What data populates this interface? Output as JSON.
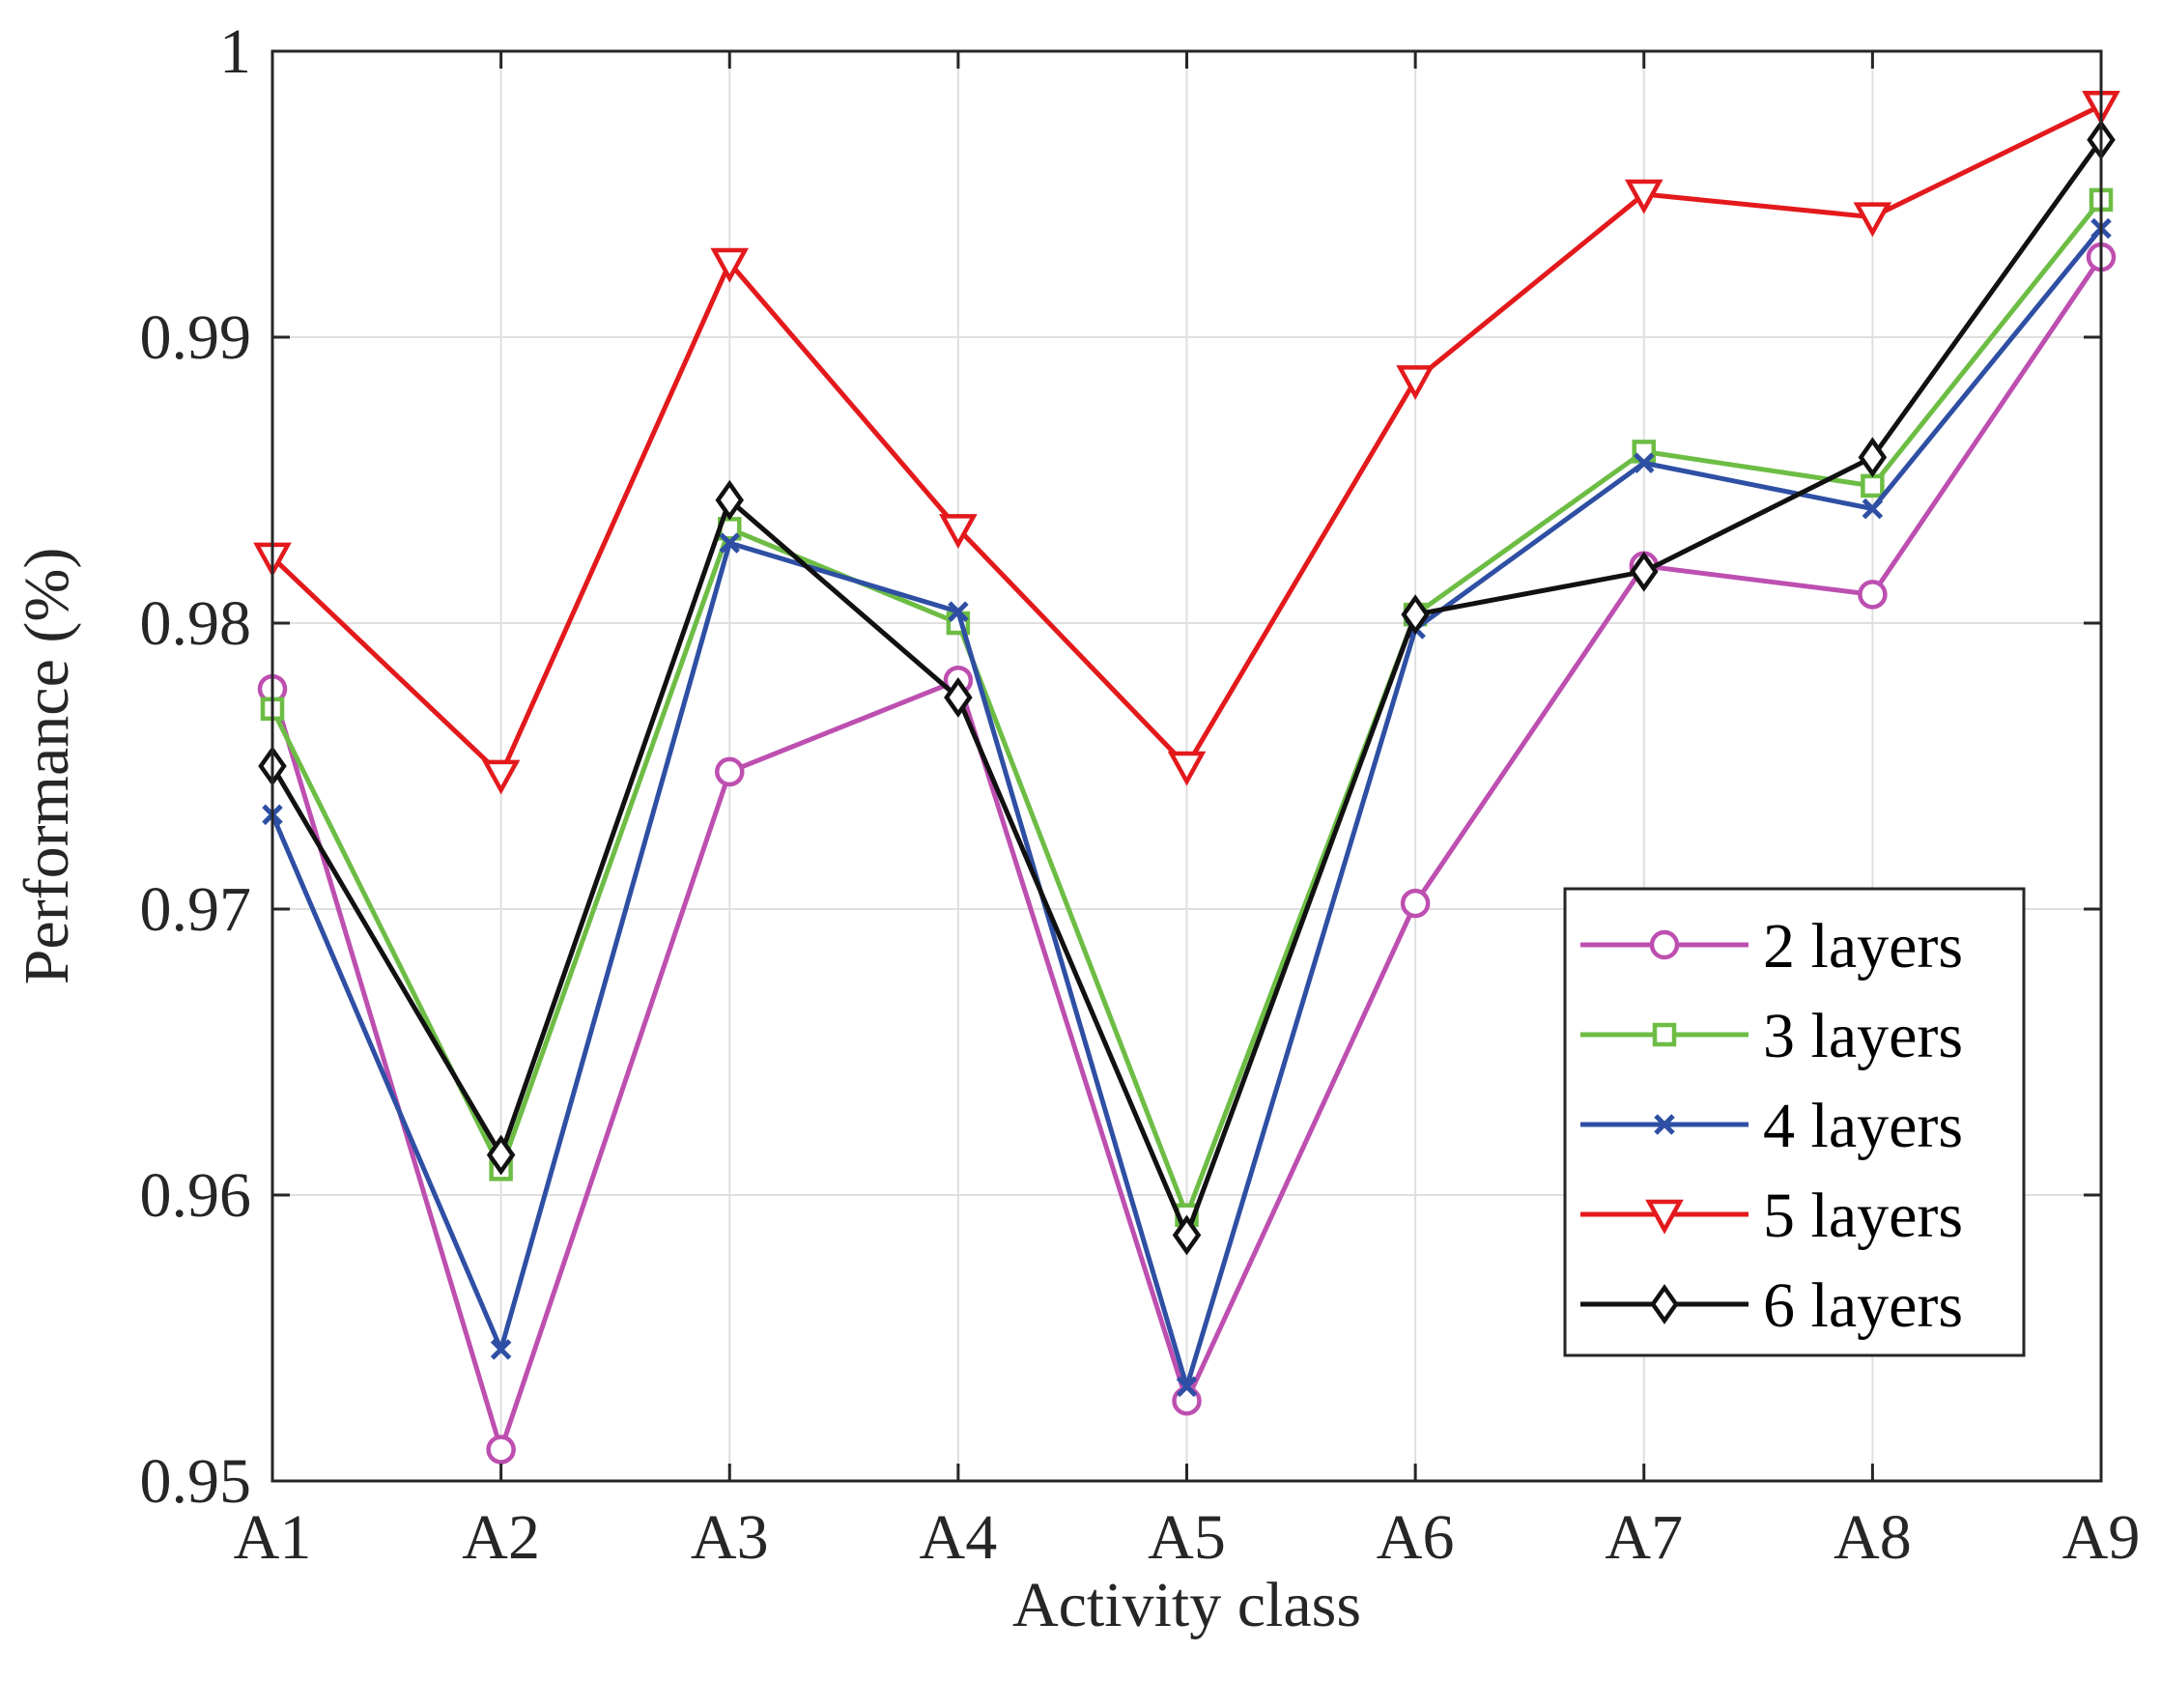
{
  "chart_data": {
    "type": "line",
    "title": "",
    "xlabel": "Activity class",
    "ylabel": "Performance (%)",
    "categories": [
      "A1",
      "A2",
      "A3",
      "A4",
      "A5",
      "A6",
      "A7",
      "A8",
      "A9"
    ],
    "ylim": [
      0.95,
      1.0
    ],
    "yticks": [
      0.95,
      0.96,
      0.97,
      0.98,
      0.99,
      1.0
    ],
    "ytick_labels": [
      "0.95",
      "0.96",
      "0.97",
      "0.98",
      "0.99",
      "1"
    ],
    "grid": true,
    "legend_position": "bottom-right",
    "series": [
      {
        "name": "2 layers",
        "color": "#bd4fb0",
        "marker": "circle",
        "values": [
          0.9777,
          0.9511,
          0.9748,
          0.978,
          0.9528,
          0.9702,
          0.982,
          0.981,
          0.9928
        ]
      },
      {
        "name": "3 layers",
        "color": "#6dbd45",
        "marker": "square",
        "values": [
          0.977,
          0.9609,
          0.9833,
          0.98,
          0.9593,
          0.9803,
          0.986,
          0.9848,
          0.9948
        ]
      },
      {
        "name": "4 layers",
        "color": "#2e4fa3",
        "marker": "x",
        "values": [
          0.9733,
          0.9546,
          0.9828,
          0.9804,
          0.9533,
          0.9798,
          0.9856,
          0.984,
          0.9938
        ]
      },
      {
        "name": "5 layers",
        "color": "#e3191c",
        "marker": "triangle-down",
        "values": [
          0.9823,
          0.9747,
          0.9926,
          0.9833,
          0.975,
          0.9885,
          0.995,
          0.9942,
          0.9981
        ]
      },
      {
        "name": "6 layers",
        "color": "#111111",
        "marker": "diamond",
        "values": [
          0.975,
          0.9614,
          0.9843,
          0.9774,
          0.9586,
          0.9803,
          0.9818,
          0.9858,
          0.9969
        ]
      }
    ]
  }
}
